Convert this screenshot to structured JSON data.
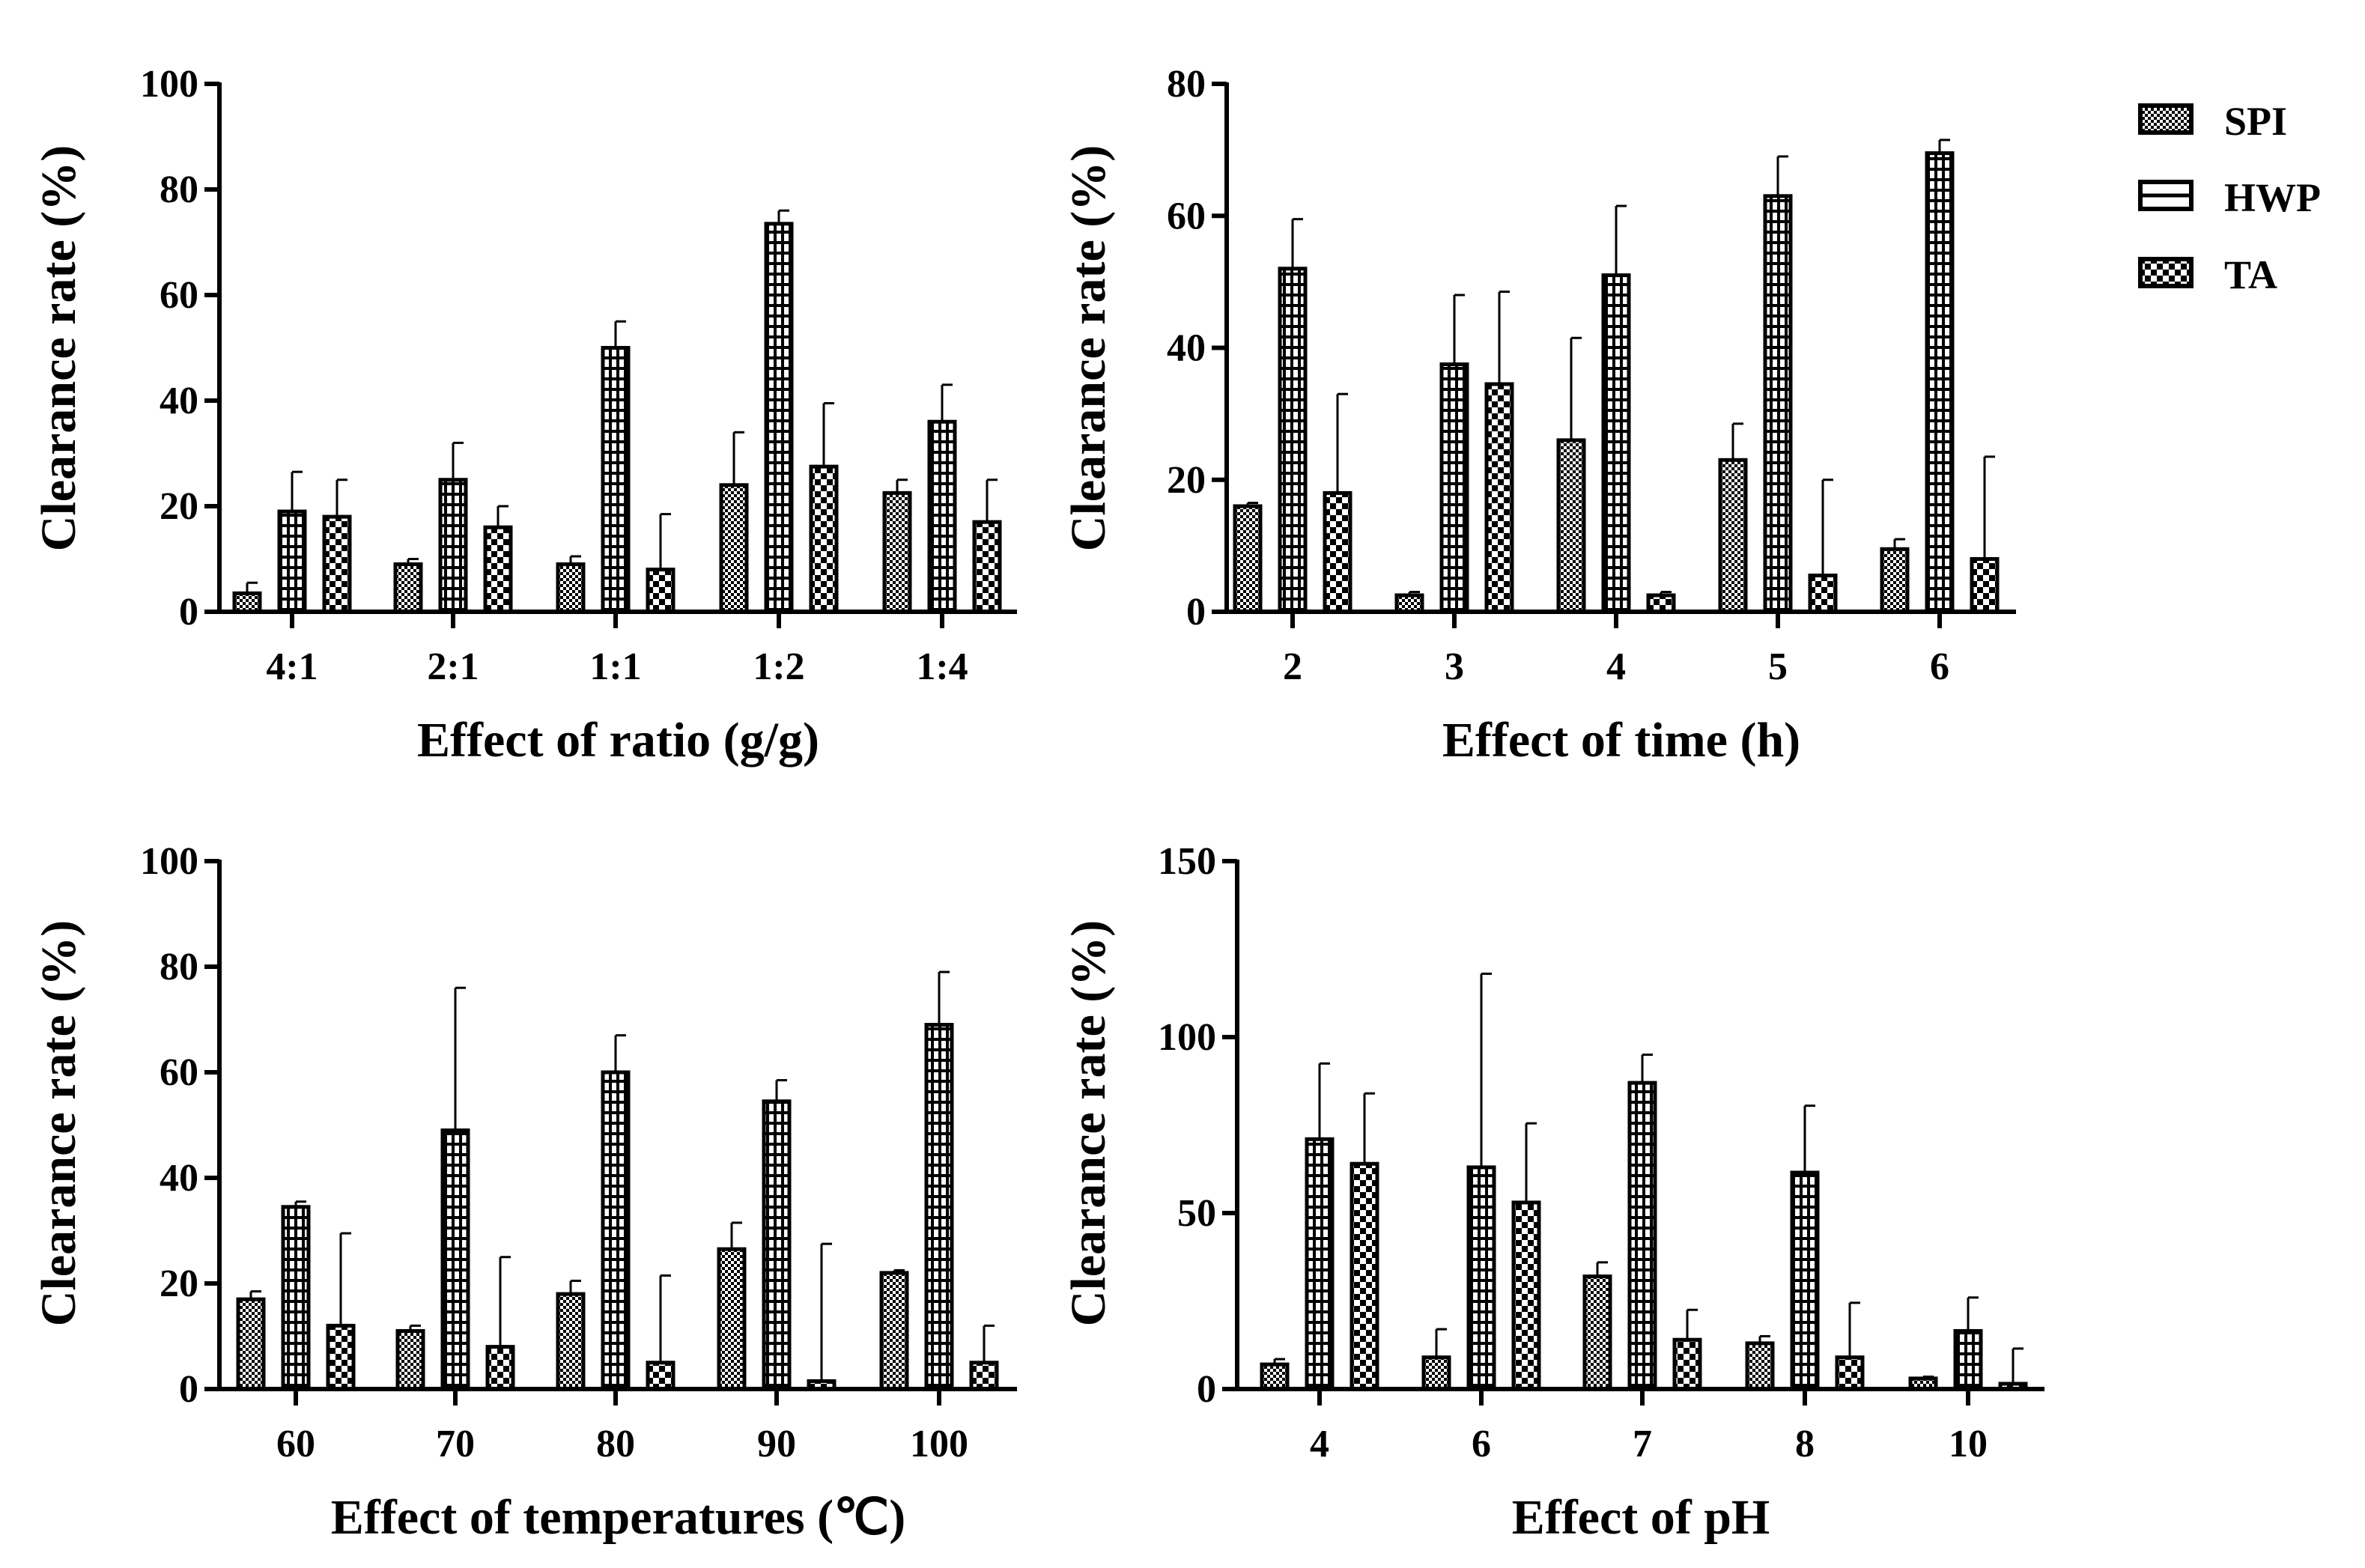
{
  "legend": {
    "entries": [
      {
        "key": "SPI",
        "label": "SPI",
        "pattern": "checker"
      },
      {
        "key": "HWP",
        "label": "HWP",
        "pattern": "hlines"
      },
      {
        "key": "TA",
        "label": "TA",
        "pattern": "bigchecker"
      }
    ]
  },
  "colors": {
    "ink": "#000000",
    "background": "#ffffff"
  },
  "chart_data": [
    {
      "type": "bar",
      "xlabel": "Effect of ratio (g/g)",
      "ylabel": "Clearance rate (%)",
      "ylim": [
        0,
        100
      ],
      "yticks": [
        0,
        20,
        40,
        60,
        80,
        100
      ],
      "categories": [
        "4:1",
        "2:1",
        "1:1",
        "1:2",
        "1:4"
      ],
      "series": [
        {
          "name": "SPI",
          "values": [
            3.5,
            9,
            9,
            24,
            22.5
          ],
          "errors": [
            2,
            1,
            1.5,
            10,
            2.5
          ]
        },
        {
          "name": "HWP",
          "values": [
            19,
            25,
            50,
            73.5,
            36
          ],
          "errors": [
            7.5,
            7,
            5,
            2.5,
            7
          ]
        },
        {
          "name": "TA",
          "values": [
            18,
            16,
            8,
            27.5,
            17
          ],
          "errors": [
            7,
            4,
            10.5,
            12,
            8
          ]
        }
      ]
    },
    {
      "type": "bar",
      "xlabel": "Effect of time (h)",
      "ylabel": "Clearance rate (%)",
      "ylim": [
        0,
        80
      ],
      "yticks": [
        0,
        20,
        40,
        60,
        80
      ],
      "categories": [
        "2",
        "3",
        "4",
        "5",
        "6"
      ],
      "series": [
        {
          "name": "SPI",
          "values": [
            16,
            2.5,
            26,
            23,
            9.5
          ],
          "errors": [
            0.5,
            0.5,
            15.5,
            5.5,
            1.5
          ]
        },
        {
          "name": "HWP",
          "values": [
            52,
            37.5,
            51,
            63,
            69.5
          ],
          "errors": [
            7.5,
            10.5,
            10.5,
            6,
            2
          ]
        },
        {
          "name": "TA",
          "values": [
            18,
            34.5,
            2.5,
            5.5,
            8
          ],
          "errors": [
            15,
            14,
            0.5,
            14.5,
            15.5
          ]
        }
      ]
    },
    {
      "type": "bar",
      "xlabel": "Effect of temperatures (℃)",
      "ylabel": "Clearance rate (%)",
      "ylim": [
        0,
        100
      ],
      "yticks": [
        0,
        20,
        40,
        60,
        80,
        100
      ],
      "categories": [
        "60",
        "70",
        "80",
        "90",
        "100"
      ],
      "series": [
        {
          "name": "SPI",
          "values": [
            17,
            11,
            18,
            26.5,
            22
          ],
          "errors": [
            1.5,
            1,
            2.5,
            5,
            0.5
          ]
        },
        {
          "name": "HWP",
          "values": [
            34.5,
            49,
            60,
            54.5,
            69
          ],
          "errors": [
            1,
            27,
            7,
            4,
            10
          ]
        },
        {
          "name": "TA",
          "values": [
            12,
            8,
            5,
            1.5,
            5
          ],
          "errors": [
            17.5,
            17,
            16.5,
            26,
            7
          ]
        }
      ]
    },
    {
      "type": "bar",
      "xlabel": "Effect of pH",
      "ylabel": "Clearance rate (%)",
      "ylim": [
        0,
        150
      ],
      "yticks": [
        0,
        50,
        100,
        150
      ],
      "categories": [
        "4",
        "6",
        "7",
        "8",
        "10"
      ],
      "series": [
        {
          "name": "SPI",
          "values": [
            7,
            9,
            32,
            13,
            3
          ],
          "errors": [
            1.5,
            8,
            4,
            2,
            0.5
          ]
        },
        {
          "name": "HWP",
          "values": [
            71,
            63,
            87,
            61.5,
            16.5
          ],
          "errors": [
            21.5,
            55,
            8,
            19,
            9.5
          ]
        },
        {
          "name": "TA",
          "values": [
            64,
            53,
            14,
            9,
            1.5
          ],
          "errors": [
            20,
            22.5,
            8.5,
            15.5,
            10
          ]
        }
      ]
    }
  ]
}
